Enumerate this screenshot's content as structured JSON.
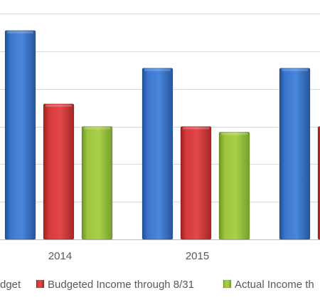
{
  "chart_data": {
    "type": "bar",
    "categories": [
      "2014",
      "2015",
      ""
    ],
    "series": [
      {
        "name": "dget",
        "color": "#3A76CC",
        "values": [
          55.5,
          45.5,
          45.5
        ]
      },
      {
        "name": "Budgeted Income through 8/31",
        "color": "#D63A3A",
        "values": [
          36,
          30,
          30
        ]
      },
      {
        "name": "Actual Income th",
        "color": "#9CC43C",
        "values": [
          30,
          28.5,
          null
        ]
      }
    ],
    "ylim": [
      0,
      60
    ],
    "y_gridlines": [
      0,
      10,
      20,
      30,
      40,
      50,
      60
    ],
    "grid": true,
    "legend_position": "bottom",
    "title": "",
    "xlabel": "",
    "ylabel": ""
  }
}
